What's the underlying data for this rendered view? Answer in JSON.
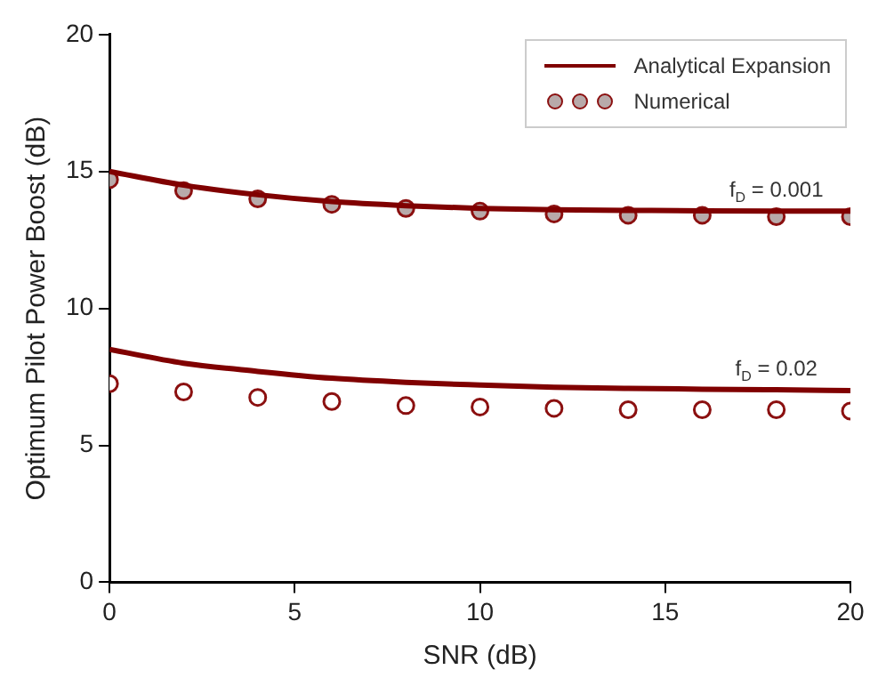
{
  "chart_data": {
    "type": "line",
    "xlabel": "SNR (dB)",
    "ylabel": "Optimum Pilot Power Boost (dB)",
    "x": [
      0,
      2,
      4,
      6,
      8,
      10,
      12,
      14,
      16,
      18,
      20
    ],
    "xlim": [
      0,
      20
    ],
    "xticks": [
      0,
      5,
      10,
      15,
      20
    ],
    "ylim": [
      0,
      20
    ],
    "yticks": [
      0,
      5,
      10,
      15,
      20
    ],
    "grid": false,
    "legend": "top right",
    "series": [
      {
        "name": "Analytical Expansion",
        "color": "#800000",
        "marker": "none",
        "values": [
          15.0,
          14.5,
          14.15,
          13.9,
          13.75,
          13.65,
          13.6,
          13.58,
          13.56,
          13.55,
          13.55
        ]
      },
      {
        "color": "#800000",
        "marker": "none",
        "values": [
          8.5,
          8.0,
          7.7,
          7.45,
          7.3,
          7.2,
          7.12,
          7.08,
          7.05,
          7.03,
          7.0
        ]
      },
      {
        "name": "Numerical",
        "type": "scatter",
        "color": "#b8aaaa",
        "marker": "circle",
        "values": [
          14.7,
          14.3,
          14.0,
          13.8,
          13.65,
          13.55,
          13.45,
          13.4,
          13.4,
          13.35,
          13.35
        ]
      },
      {
        "type": "scatter",
        "color": "#ffffff",
        "marker": "circle",
        "values": [
          7.25,
          6.95,
          6.75,
          6.6,
          6.45,
          6.4,
          6.35,
          6.3,
          6.3,
          6.3,
          6.25
        ]
      }
    ],
    "annotations": [
      {
        "text": "f$_{D}$ = 0.001",
        "x": 18,
        "y": 13.55
      },
      {
        "text": "f$_{D}$ = 0.02",
        "x": 18,
        "y": 7.03
      }
    ]
  }
}
